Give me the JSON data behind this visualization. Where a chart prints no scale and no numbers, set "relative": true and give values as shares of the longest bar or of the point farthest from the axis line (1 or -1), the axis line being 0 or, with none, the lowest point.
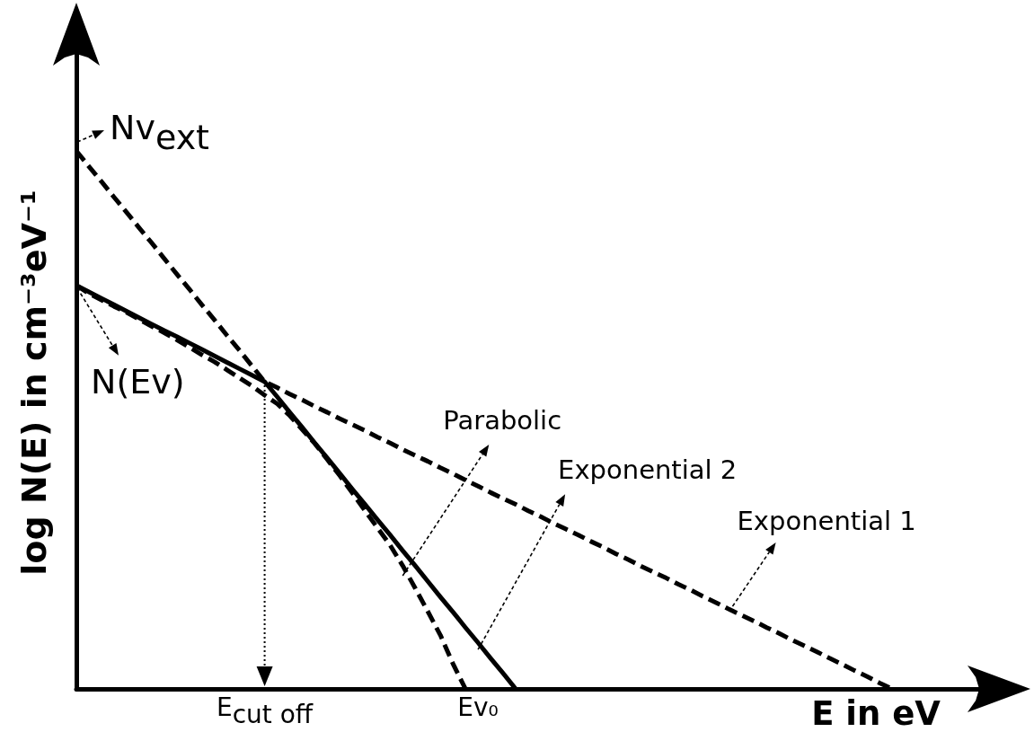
{
  "chart_data": {
    "type": "line",
    "relative": true,
    "xlabel": "E in eV",
    "ylabel": "log N(E) in cm⁻³eV⁻¹",
    "tick_labels": "x",
    "categories": [
      null,
      null,
      null,
      null,
      null,
      null,
      null,
      null,
      null,
      null,
      null,
      null,
      null,
      null,
      null,
      "E$_{cut off}$",
      null,
      null,
      null,
      null,
      null,
      null,
      null,
      null,
      null,
      null,
      null,
      null,
      null,
      null,
      null,
      null,
      "Ev₀",
      null,
      null,
      null,
      null,
      null,
      null,
      null,
      null,
      null,
      null,
      null,
      null,
      null,
      null,
      null,
      null,
      null,
      null,
      null,
      null,
      null,
      null,
      null,
      null,
      null,
      null,
      null,
      null,
      null,
      null,
      null,
      null,
      null,
      null,
      null,
      null,
      null,
      null,
      null,
      null
    ],
    "annotations": [
      "Nv$_{ext}$",
      "N(Ev)"
    ],
    "series": [
      {
        "name": "Exponential 2",
        "color": "#000000",
        "line_style": "solid",
        "values": [
          0.75,
          0.738,
          0.726,
          0.714,
          0.702,
          0.69,
          0.678,
          0.666,
          0.655,
          0.643,
          0.631,
          0.619,
          0.607,
          0.595,
          0.583,
          0.571,
          0.543,
          0.514,
          0.486,
          0.457,
          0.429,
          0.4,
          0.371,
          0.343,
          0.314,
          0.286,
          0.257,
          0.229,
          0.2,
          0.171,
          0.143,
          0.114,
          0.086,
          0.057,
          0.029,
          0,
          null,
          null,
          null,
          null,
          null,
          null,
          null,
          null,
          null,
          null,
          null,
          null,
          null,
          null,
          null,
          null,
          null,
          null,
          null,
          null,
          null,
          null,
          null,
          null,
          null,
          null,
          null,
          null,
          null,
          null,
          null,
          null,
          null,
          null,
          null,
          null,
          null
        ]
      },
      {
        "name": "Exponential 1",
        "color": "#000000",
        "line_style": "dashed",
        "values": [
          1,
          0.971,
          0.943,
          0.914,
          0.886,
          0.857,
          0.829,
          0.8,
          0.771,
          0.743,
          0.714,
          0.686,
          0.657,
          0.629,
          0.6,
          0.571,
          0.56,
          0.548,
          0.537,
          0.525,
          0.514,
          0.502,
          0.491,
          0.48,
          0.468,
          0.457,
          0.445,
          0.434,
          0.423,
          0.411,
          0.4,
          0.388,
          0.377,
          0.365,
          0.354,
          0.343,
          0.331,
          0.32,
          0.308,
          0.297,
          0.286,
          0.274,
          0.263,
          0.251,
          0.24,
          0.228,
          0.217,
          0.206,
          0.194,
          0.183,
          0.171,
          0.16,
          0.148,
          0.137,
          0.126,
          0.114,
          0.103,
          0.091,
          0.08,
          0.069,
          0.057,
          0.046,
          0.034,
          0.023,
          0.011,
          0,
          null,
          null,
          null,
          null,
          null,
          null,
          null
        ]
      },
      {
        "name": "Parabolic",
        "color": "#000000",
        "line_style": "dashed",
        "values": [
          0.75,
          0.735,
          0.723,
          0.711,
          0.7,
          0.687,
          0.674,
          0.662,
          0.649,
          0.635,
          0.621,
          0.608,
          0.593,
          0.578,
          0.563,
          0.546,
          0.53,
          0.508,
          0.482,
          0.456,
          0.426,
          0.396,
          0.364,
          0.331,
          0.299,
          0.267,
          0.229,
          0.187,
          0.144,
          0.1,
          0.047,
          0,
          null,
          null,
          null,
          null,
          null,
          null,
          null,
          null,
          null,
          null,
          null,
          null,
          null,
          null,
          null,
          null,
          null,
          null,
          null,
          null,
          null,
          null,
          null,
          null,
          null,
          null,
          null,
          null,
          null,
          null,
          null,
          null,
          null,
          null,
          null,
          null,
          null,
          null,
          null,
          null,
          null
        ]
      }
    ]
  }
}
